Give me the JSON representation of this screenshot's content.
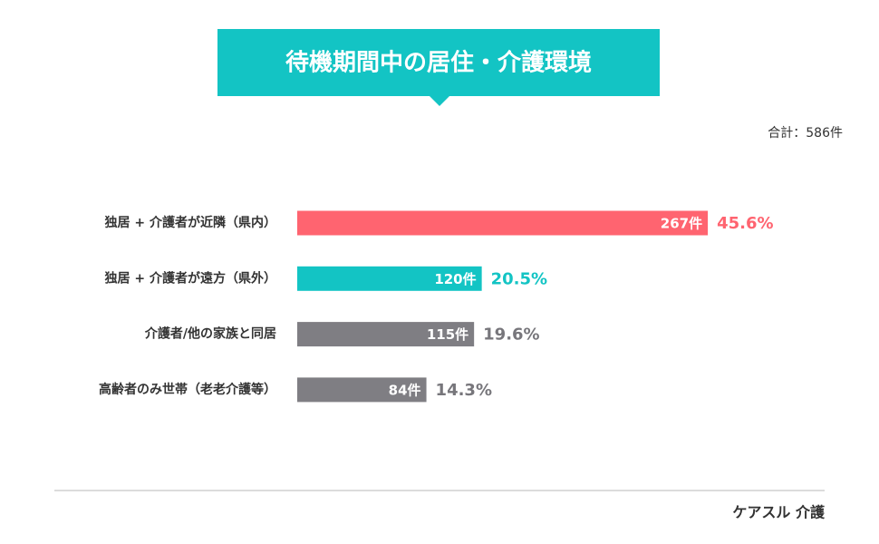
{
  "chart_data": {
    "type": "bar",
    "orientation": "horizontal",
    "title": "待機期間中の居住・介護環境",
    "total_label": "合計：586件",
    "categories": [
      "独居 + 介護者が近隣（県内）",
      "独居 + 介護者が遠方（県外）",
      "介護者/他の家族と同居",
      "高齢者のみ世帯（老老介護等）"
    ],
    "values": [
      267,
      120,
      115,
      84
    ],
    "value_labels": [
      "267件",
      "120件",
      "115件",
      "84件"
    ],
    "share_labels": [
      "45.6%",
      "20.5%",
      "19.6%",
      "14.3%"
    ],
    "colors": [
      "#ff6470",
      "#13c4c4",
      "#7f7e83",
      "#7f7e83"
    ],
    "share_colors": [
      "#ff6470",
      "#13c4c4",
      "#77767b",
      "#77767b"
    ],
    "source": "ケアスル 介護"
  }
}
